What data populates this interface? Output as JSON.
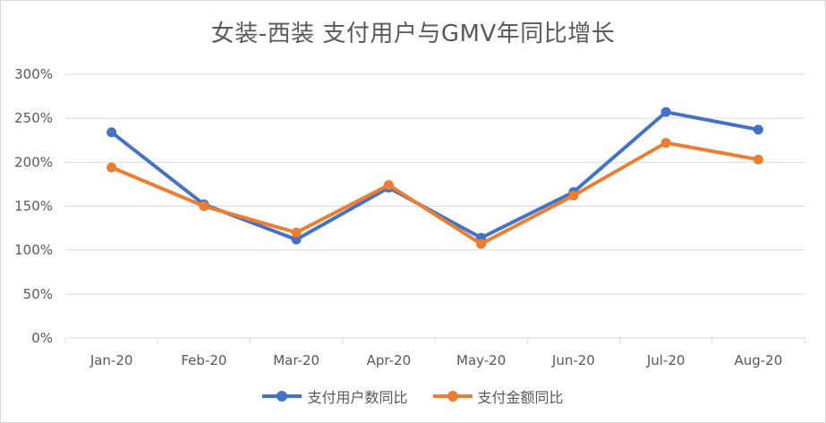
{
  "chart_data": {
    "type": "line",
    "title": "女装-西装 支付用户与GMV年同比增长",
    "xlabel": "",
    "ylabel": "",
    "categories": [
      "Jan-20",
      "Feb-20",
      "Mar-20",
      "Apr-20",
      "May-20",
      "Jun-20",
      "Jul-20",
      "Aug-20"
    ],
    "ylim": [
      0,
      300
    ],
    "yticks": [
      "0%",
      "50%",
      "100%",
      "150%",
      "200%",
      "250%",
      "300%"
    ],
    "grid": true,
    "legend": "bottom",
    "series": [
      {
        "name": "支付用户数同比",
        "color": "#4472c4",
        "values": [
          234,
          152,
          112,
          171,
          114,
          166,
          257,
          237
        ]
      },
      {
        "name": "支付金额同比",
        "color": "#ed7d31",
        "values": [
          194,
          150,
          120,
          174,
          107,
          162,
          222,
          203
        ]
      }
    ]
  }
}
